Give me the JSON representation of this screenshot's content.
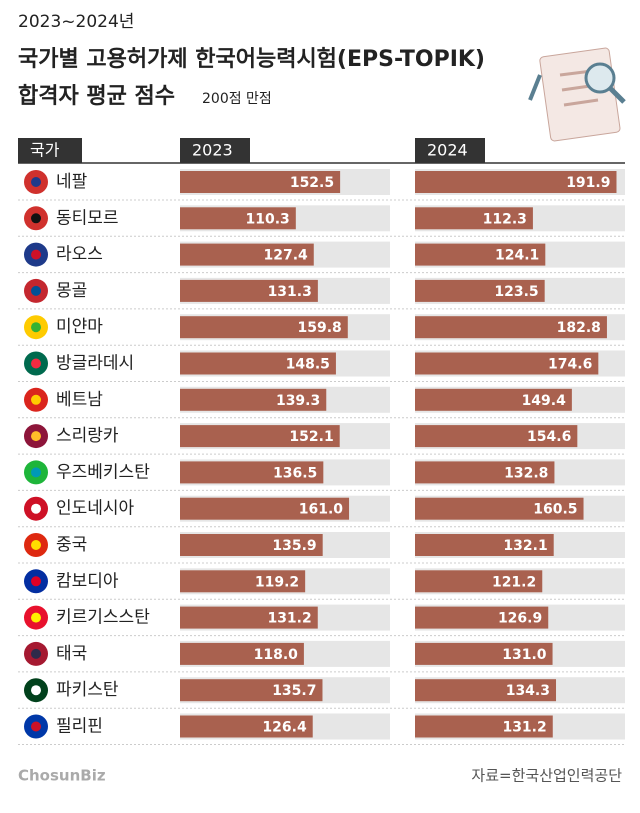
{
  "chart_data": {
    "type": "bar",
    "supertitle": "2023~2024년",
    "title": [
      "국가별 고용허가제 한국어능력시험(EPS-TOPIK)",
      "합격자 평균 점수"
    ],
    "note": "200점 만점",
    "column_header": "국가",
    "categories": [
      "네팔",
      "동티모르",
      "라오스",
      "몽골",
      "미얀마",
      "방글라데시",
      "베트남",
      "스리랑카",
      "우즈베키스탄",
      "인도네시아",
      "중국",
      "캄보디아",
      "키르기스스탄",
      "태국",
      "파키스탄",
      "필리핀"
    ],
    "series": [
      {
        "name": "2023",
        "color": "#a9614f",
        "values": [
          152.5,
          110.3,
          127.4,
          131.3,
          159.8,
          148.5,
          139.3,
          152.1,
          136.5,
          161.0,
          135.9,
          119.2,
          131.2,
          118.0,
          135.7,
          126.4
        ],
        "value_labels": [
          "152.5",
          "110.3",
          "127.4",
          "131.3",
          "159.8",
          "148.5",
          "139.3",
          "152.1",
          "136.5",
          "161.0",
          "135.9",
          "119.2",
          "131.2",
          "118.0",
          "135.7",
          "126.4"
        ]
      },
      {
        "name": "2024",
        "color": "#a9614f",
        "values": [
          191.9,
          112.3,
          124.1,
          123.5,
          182.8,
          174.6,
          149.4,
          154.6,
          132.8,
          160.5,
          132.1,
          121.2,
          126.9,
          131.0,
          134.3,
          131.2
        ],
        "value_labels": [
          "191.9",
          "112.3",
          "124.1",
          "123.5",
          "182.8",
          "174.6",
          "149.4",
          "154.6",
          "132.8",
          "160.5",
          "132.1",
          "121.2",
          "126.9",
          "131.0",
          "134.3",
          "131.2"
        ]
      }
    ],
    "xlim": [
      0,
      200
    ],
    "source": "자료=한국산업인력공단",
    "logo": "ChosunBiz"
  }
}
